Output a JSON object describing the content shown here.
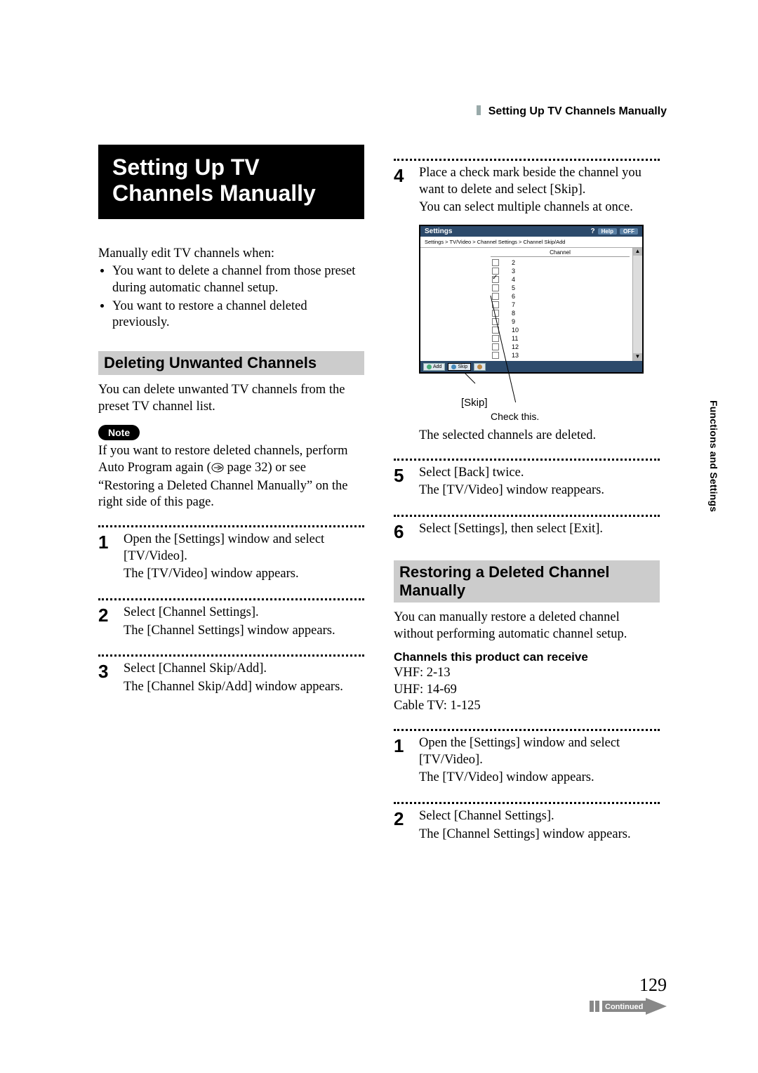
{
  "running_header": "Setting Up TV Channels Manually",
  "side_tab": "Functions and Settings",
  "page_number": "129",
  "continued_label": "Continued",
  "main_title_line1": "Setting Up TV",
  "main_title_line2": "Channels Manually",
  "intro": "Manually edit TV channels when:",
  "intro_bullets": [
    "You want to delete a channel from those preset during automatic channel setup.",
    "You want to restore a channel deleted previously."
  ],
  "section_delete_title": "Deleting Unwanted Channels",
  "section_delete_body": "You can delete unwanted TV channels from the preset TV channel list.",
  "note_label": "Note",
  "note_body_pre": "If you want to restore deleted channels, perform Auto Program again (",
  "note_body_ref": " page 32) or see “Restoring a Deleted Channel Manually” on the right side of this page.",
  "steps_left": [
    {
      "n": "1",
      "body": [
        "Open the [Settings] window and select [TV/Video].",
        "The [TV/Video] window appears."
      ]
    },
    {
      "n": "2",
      "body": [
        "Select [Channel Settings].",
        "The [Channel Settings] window appears."
      ]
    },
    {
      "n": "3",
      "body": [
        "Select [Channel Skip/Add].",
        "The [Channel Skip/Add] window appears."
      ]
    }
  ],
  "steps_right_a": [
    {
      "n": "4",
      "body": [
        "Place a check mark beside the channel you want to delete and select [Skip].",
        "You can select multiple channels at once."
      ]
    }
  ],
  "shot": {
    "title": "Settings",
    "right_chips": [
      "Help",
      "OFF"
    ],
    "crumb": "Settings > TV/Video > Channel Settings > Channel Skip/Add",
    "list_header": "Channel",
    "rows": [
      {
        "checked": false,
        "label": "2"
      },
      {
        "checked": false,
        "label": "3"
      },
      {
        "checked": true,
        "label": "4"
      },
      {
        "checked": false,
        "label": "5"
      },
      {
        "checked": false,
        "label": "6"
      },
      {
        "checked": false,
        "label": "7"
      },
      {
        "checked": false,
        "label": "8"
      },
      {
        "checked": false,
        "label": "9"
      },
      {
        "checked": false,
        "label": "10"
      },
      {
        "checked": false,
        "label": "11"
      },
      {
        "checked": false,
        "label": "12"
      },
      {
        "checked": false,
        "label": "13"
      }
    ],
    "footer_buttons": [
      "Add",
      "Skip"
    ],
    "callout_skip": "[Skip]",
    "callout_check": "Check this."
  },
  "after_shot": "The selected channels are deleted.",
  "steps_right_b": [
    {
      "n": "5",
      "body": [
        "Select [Back] twice.",
        "The [TV/Video] window reappears."
      ]
    },
    {
      "n": "6",
      "body": [
        "Select [Settings], then select [Exit]."
      ]
    }
  ],
  "section_restore_title": "Restoring a Deleted Channel Manually",
  "section_restore_body": "You can manually restore a deleted channel without performing automatic channel setup.",
  "channels_receive_title": "Channels this product can receive",
  "channels_receive": [
    "VHF: 2-13",
    "UHF: 14-69",
    "Cable TV: 1-125"
  ],
  "steps_right_c": [
    {
      "n": "1",
      "body": [
        "Open the [Settings] window and select [TV/Video].",
        "The [TV/Video] window appears."
      ]
    },
    {
      "n": "2",
      "body": [
        "Select [Channel Settings].",
        "The [Channel Settings] window appears."
      ]
    }
  ]
}
